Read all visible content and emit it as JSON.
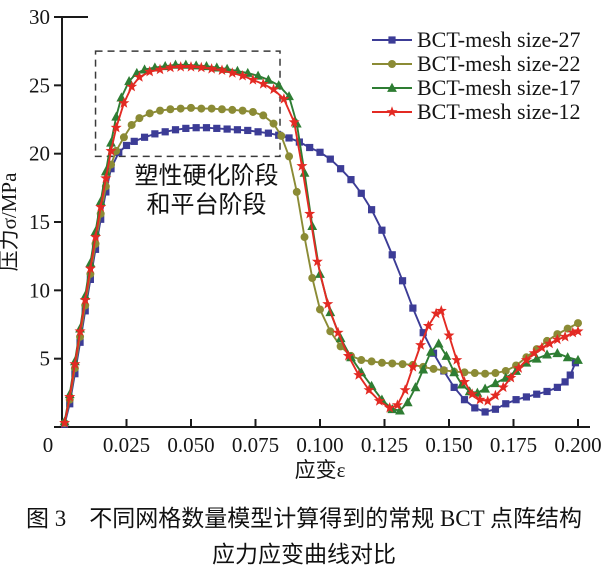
{
  "caption": {
    "line1": "图 3　不同网格数量模型计算得到的常规 BCT 点阵结构",
    "line2": "应力应变曲线对比"
  },
  "chart_data": {
    "type": "line",
    "title": "",
    "xlabel": "应变ε",
    "ylabel": "压力σ/MPa",
    "xlim": [
      0,
      0.2
    ],
    "ylim": [
      0,
      30
    ],
    "grid": false,
    "legend_position": "top-right",
    "x_tick_values": [
      0,
      0.025,
      0.05,
      0.075,
      0.1,
      0.125,
      0.15,
      0.175,
      0.2
    ],
    "x_tick_labels": [
      "0",
      "0.025",
      "0.050",
      "0.075",
      "0.100",
      "0.125",
      "0.150",
      "0.175",
      "0.200"
    ],
    "y_tick_values": [
      0,
      5,
      10,
      15,
      20,
      25,
      30
    ],
    "y_tick_labels": [
      "0",
      "5",
      "10",
      "15",
      "20",
      "25",
      "30"
    ],
    "annotation": {
      "lines": [
        "塑性硬化阶段",
        "和平台阶段"
      ],
      "box_data_coords": {
        "x0": 0.013,
        "x1": 0.0845,
        "y0": 19.8,
        "y1": 27.5
      },
      "text_center_x": 0.056,
      "text_baselines_y": [
        17.8,
        15.7
      ]
    },
    "series": [
      {
        "name": "BCT-mesh size-27",
        "color": "#3C3C96",
        "marker": "square",
        "points": [
          [
            0.001,
            0.2
          ],
          [
            0.003,
            1.7
          ],
          [
            0.005,
            3.9
          ],
          [
            0.007,
            6.2
          ],
          [
            0.009,
            8.5
          ],
          [
            0.011,
            10.8
          ],
          [
            0.013,
            13.0
          ],
          [
            0.015,
            15.2
          ],
          [
            0.017,
            17.2
          ],
          [
            0.019,
            18.9
          ],
          [
            0.022,
            20.1
          ],
          [
            0.025,
            20.6
          ],
          [
            0.028,
            20.9
          ],
          [
            0.032,
            21.2
          ],
          [
            0.036,
            21.45
          ],
          [
            0.04,
            21.6
          ],
          [
            0.044,
            21.75
          ],
          [
            0.048,
            21.85
          ],
          [
            0.052,
            21.9
          ],
          [
            0.056,
            21.9
          ],
          [
            0.06,
            21.85
          ],
          [
            0.064,
            21.8
          ],
          [
            0.068,
            21.75
          ],
          [
            0.072,
            21.7
          ],
          [
            0.076,
            21.6
          ],
          [
            0.08,
            21.5
          ],
          [
            0.084,
            21.35
          ],
          [
            0.088,
            21.15
          ],
          [
            0.092,
            20.85
          ],
          [
            0.096,
            20.45
          ],
          [
            0.1,
            20.1
          ],
          [
            0.104,
            19.6
          ],
          [
            0.108,
            18.9
          ],
          [
            0.112,
            18.1
          ],
          [
            0.116,
            17.1
          ],
          [
            0.12,
            15.9
          ],
          [
            0.124,
            14.4
          ],
          [
            0.128,
            12.6
          ],
          [
            0.132,
            10.7
          ],
          [
            0.136,
            8.7
          ],
          [
            0.14,
            6.9
          ],
          [
            0.144,
            5.4
          ],
          [
            0.148,
            4.1
          ],
          [
            0.152,
            2.9
          ],
          [
            0.156,
            2.0
          ],
          [
            0.16,
            1.4
          ],
          [
            0.164,
            1.1
          ],
          [
            0.168,
            1.3
          ],
          [
            0.172,
            1.7
          ],
          [
            0.176,
            2.0
          ],
          [
            0.18,
            2.2
          ],
          [
            0.184,
            2.4
          ],
          [
            0.188,
            2.6
          ],
          [
            0.192,
            2.9
          ],
          [
            0.195,
            3.3
          ],
          [
            0.197,
            3.8
          ],
          [
            0.199,
            4.7
          ]
        ]
      },
      {
        "name": "BCT-mesh size-22",
        "color": "#8B8B35",
        "marker": "circle",
        "points": [
          [
            0.001,
            0.3
          ],
          [
            0.003,
            2.0
          ],
          [
            0.005,
            4.3
          ],
          [
            0.007,
            6.6
          ],
          [
            0.009,
            8.9
          ],
          [
            0.011,
            11.2
          ],
          [
            0.013,
            13.4
          ],
          [
            0.015,
            15.6
          ],
          [
            0.017,
            17.6
          ],
          [
            0.019,
            19.2
          ],
          [
            0.021,
            20.2
          ],
          [
            0.024,
            21.2
          ],
          [
            0.027,
            22.1
          ],
          [
            0.03,
            22.6
          ],
          [
            0.034,
            22.95
          ],
          [
            0.038,
            23.15
          ],
          [
            0.042,
            23.25
          ],
          [
            0.046,
            23.3
          ],
          [
            0.05,
            23.35
          ],
          [
            0.054,
            23.3
          ],
          [
            0.058,
            23.3
          ],
          [
            0.062,
            23.25
          ],
          [
            0.066,
            23.2
          ],
          [
            0.07,
            23.15
          ],
          [
            0.074,
            23.05
          ],
          [
            0.078,
            22.8
          ],
          [
            0.082,
            22.2
          ],
          [
            0.085,
            21.3
          ],
          [
            0.088,
            19.8
          ],
          [
            0.091,
            17.2
          ],
          [
            0.094,
            13.9
          ],
          [
            0.097,
            10.9
          ],
          [
            0.1,
            8.6
          ],
          [
            0.104,
            7.0
          ],
          [
            0.108,
            5.9
          ],
          [
            0.112,
            5.2
          ],
          [
            0.116,
            4.9
          ],
          [
            0.12,
            4.8
          ],
          [
            0.124,
            4.7
          ],
          [
            0.128,
            4.65
          ],
          [
            0.132,
            4.6
          ],
          [
            0.136,
            4.55
          ],
          [
            0.14,
            4.4
          ],
          [
            0.144,
            4.25
          ],
          [
            0.148,
            4.15
          ],
          [
            0.152,
            4.05
          ],
          [
            0.156,
            4.0
          ],
          [
            0.16,
            3.95
          ],
          [
            0.164,
            3.9
          ],
          [
            0.168,
            3.95
          ],
          [
            0.172,
            4.1
          ],
          [
            0.176,
            4.5
          ],
          [
            0.18,
            5.1
          ],
          [
            0.184,
            5.7
          ],
          [
            0.188,
            6.3
          ],
          [
            0.192,
            6.8
          ],
          [
            0.196,
            7.2
          ],
          [
            0.2,
            7.6
          ]
        ]
      },
      {
        "name": "BCT-mesh size-17",
        "color": "#2E7D33",
        "marker": "triangle",
        "points": [
          [
            0.001,
            0.4
          ],
          [
            0.003,
            2.4
          ],
          [
            0.005,
            4.8
          ],
          [
            0.007,
            7.2
          ],
          [
            0.009,
            9.6
          ],
          [
            0.011,
            12.0
          ],
          [
            0.013,
            14.3
          ],
          [
            0.015,
            16.5
          ],
          [
            0.017,
            18.7
          ],
          [
            0.019,
            20.8
          ],
          [
            0.021,
            22.7
          ],
          [
            0.023,
            24.1
          ],
          [
            0.026,
            25.3
          ],
          [
            0.029,
            25.9
          ],
          [
            0.032,
            26.15
          ],
          [
            0.036,
            26.3
          ],
          [
            0.04,
            26.4
          ],
          [
            0.044,
            26.5
          ],
          [
            0.048,
            26.5
          ],
          [
            0.052,
            26.45
          ],
          [
            0.056,
            26.4
          ],
          [
            0.06,
            26.3
          ],
          [
            0.064,
            26.2
          ],
          [
            0.068,
            26.05
          ],
          [
            0.072,
            25.9
          ],
          [
            0.076,
            25.7
          ],
          [
            0.08,
            25.4
          ],
          [
            0.084,
            25.0
          ],
          [
            0.088,
            24.2
          ],
          [
            0.091,
            22.2
          ],
          [
            0.094,
            18.6
          ],
          [
            0.097,
            14.7
          ],
          [
            0.1,
            11.2
          ],
          [
            0.104,
            8.4
          ],
          [
            0.108,
            6.5
          ],
          [
            0.112,
            5.1
          ],
          [
            0.116,
            4.0
          ],
          [
            0.12,
            3.0
          ],
          [
            0.124,
            2.0
          ],
          [
            0.128,
            1.3
          ],
          [
            0.131,
            1.2
          ],
          [
            0.134,
            1.8
          ],
          [
            0.137,
            2.9
          ],
          [
            0.14,
            4.2
          ],
          [
            0.143,
            5.5
          ],
          [
            0.146,
            6.1
          ],
          [
            0.149,
            5.2
          ],
          [
            0.152,
            4.0
          ],
          [
            0.155,
            3.1
          ],
          [
            0.158,
            2.6
          ],
          [
            0.161,
            2.5
          ],
          [
            0.164,
            2.8
          ],
          [
            0.168,
            3.2
          ],
          [
            0.172,
            3.6
          ],
          [
            0.176,
            4.1
          ],
          [
            0.18,
            4.7
          ],
          [
            0.184,
            5.0
          ],
          [
            0.188,
            5.3
          ],
          [
            0.192,
            5.4
          ],
          [
            0.196,
            5.1
          ],
          [
            0.2,
            4.9
          ]
        ]
      },
      {
        "name": "BCT-mesh size-12",
        "color": "#E32A23",
        "marker": "star",
        "points": [
          [
            0.001,
            0.3
          ],
          [
            0.003,
            2.2
          ],
          [
            0.005,
            4.6
          ],
          [
            0.007,
            7.0
          ],
          [
            0.009,
            9.3
          ],
          [
            0.011,
            11.6
          ],
          [
            0.013,
            13.9
          ],
          [
            0.015,
            16.1
          ],
          [
            0.017,
            18.2
          ],
          [
            0.019,
            20.2
          ],
          [
            0.021,
            21.9
          ],
          [
            0.024,
            23.7
          ],
          [
            0.027,
            24.9
          ],
          [
            0.03,
            25.6
          ],
          [
            0.034,
            26.0
          ],
          [
            0.038,
            26.15
          ],
          [
            0.042,
            26.3
          ],
          [
            0.046,
            26.35
          ],
          [
            0.05,
            26.35
          ],
          [
            0.054,
            26.3
          ],
          [
            0.058,
            26.2
          ],
          [
            0.062,
            26.1
          ],
          [
            0.066,
            25.9
          ],
          [
            0.07,
            25.7
          ],
          [
            0.074,
            25.4
          ],
          [
            0.078,
            25.1
          ],
          [
            0.082,
            24.7
          ],
          [
            0.086,
            24.0
          ],
          [
            0.09,
            22.3
          ],
          [
            0.093,
            19.1
          ],
          [
            0.096,
            15.6
          ],
          [
            0.099,
            12.1
          ],
          [
            0.103,
            9.0
          ],
          [
            0.107,
            6.9
          ],
          [
            0.111,
            5.2
          ],
          [
            0.115,
            3.8
          ],
          [
            0.119,
            2.7
          ],
          [
            0.123,
            1.9
          ],
          [
            0.127,
            1.4
          ],
          [
            0.13,
            1.6
          ],
          [
            0.133,
            2.7
          ],
          [
            0.136,
            4.4
          ],
          [
            0.139,
            6.0
          ],
          [
            0.142,
            7.4
          ],
          [
            0.145,
            8.3
          ],
          [
            0.147,
            8.5
          ],
          [
            0.15,
            6.7
          ],
          [
            0.153,
            4.9
          ],
          [
            0.156,
            3.3
          ],
          [
            0.159,
            2.4
          ],
          [
            0.162,
            2.0
          ],
          [
            0.165,
            1.9
          ],
          [
            0.168,
            2.3
          ],
          [
            0.171,
            2.9
          ],
          [
            0.174,
            3.6
          ],
          [
            0.177,
            4.3
          ],
          [
            0.18,
            4.9
          ],
          [
            0.183,
            5.4
          ],
          [
            0.186,
            5.8
          ],
          [
            0.189,
            6.1
          ],
          [
            0.192,
            6.4
          ],
          [
            0.195,
            6.6
          ],
          [
            0.198,
            6.9
          ],
          [
            0.2,
            7.0
          ]
        ]
      }
    ]
  }
}
